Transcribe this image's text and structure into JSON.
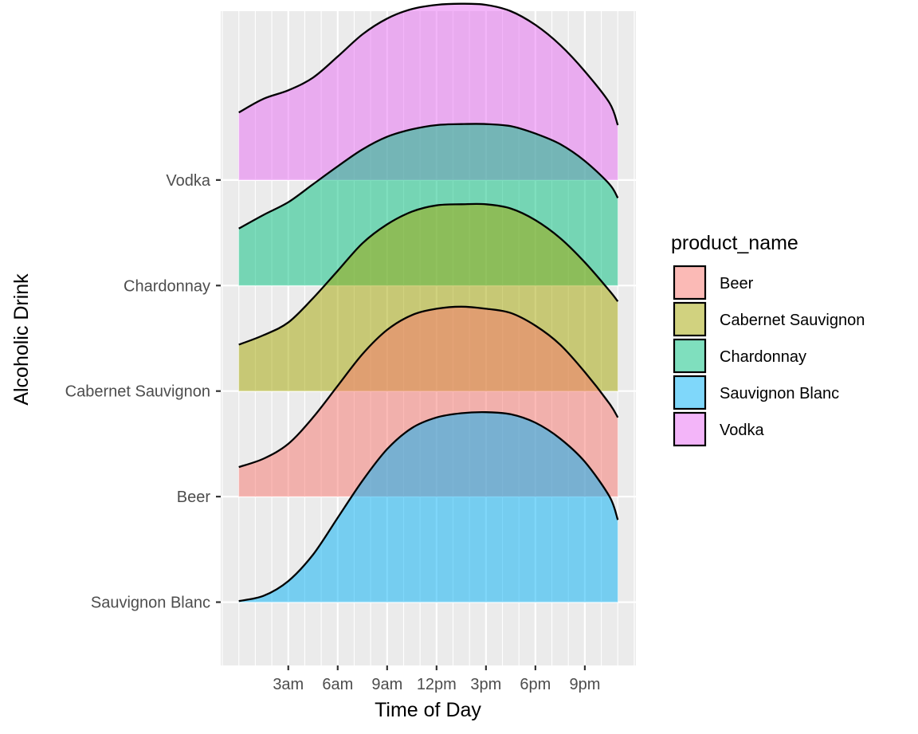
{
  "chart_data": {
    "type": "area",
    "subtype": "ridgeline-density",
    "title": "",
    "xlabel": "Time of Day",
    "ylabel": "Alcoholic Drink",
    "x_ticks": [
      {
        "value": 3,
        "label": "3am"
      },
      {
        "value": 6,
        "label": "6am"
      },
      {
        "value": 9,
        "label": "9am"
      },
      {
        "value": 12,
        "label": "12pm"
      },
      {
        "value": 15,
        "label": "3pm"
      },
      {
        "value": 18,
        "label": "6pm"
      },
      {
        "value": 21,
        "label": "9pm"
      }
    ],
    "xlim": [
      -1.1,
      24.1
    ],
    "y_categories": [
      "Sauvignon Blanc",
      "Beer",
      "Cabernet Sauvignon",
      "Chardonnay",
      "Vodka"
    ],
    "ylim": [
      0.4,
      6.6
    ],
    "grid": true,
    "legend": {
      "title": "product_name",
      "position": "right",
      "entries": [
        "Beer",
        "Cabernet Sauvignon",
        "Chardonnay",
        "Sauvignon Blanc",
        "Vodka"
      ]
    },
    "colors": {
      "Beer": "#F8766D",
      "Cabernet Sauvignon": "#A3A500",
      "Chardonnay": "#00BF7D",
      "Sauvignon Blanc": "#00B0F6",
      "Vodka": "#E76BF3"
    },
    "panel_background": "#EBEBEB",
    "fill_alpha": 0.5,
    "series": [
      {
        "name": "Sauvignon Blanc",
        "baseline": 1,
        "x": [
          0,
          1.5,
          3,
          4.5,
          6,
          7.5,
          9,
          10.5,
          12,
          13.5,
          15,
          16.5,
          18,
          19.5,
          21,
          22.5,
          23
        ],
        "y": [
          1.01,
          1.06,
          1.2,
          1.45,
          1.8,
          2.15,
          2.45,
          2.65,
          2.75,
          2.79,
          2.8,
          2.78,
          2.7,
          2.55,
          2.33,
          2.0,
          1.78
        ]
      },
      {
        "name": "Beer",
        "baseline": 2,
        "x": [
          0,
          1.5,
          3,
          4.5,
          6,
          7.5,
          9,
          10.5,
          12,
          13.5,
          15,
          16.5,
          18,
          19.5,
          21,
          22.5,
          23
        ],
        "y": [
          2.28,
          2.36,
          2.5,
          2.75,
          3.05,
          3.35,
          3.58,
          3.72,
          3.78,
          3.8,
          3.78,
          3.74,
          3.62,
          3.44,
          3.18,
          2.88,
          2.75
        ]
      },
      {
        "name": "Cabernet Sauvignon",
        "baseline": 3,
        "x": [
          0,
          1.5,
          3,
          4.5,
          6,
          7.5,
          9,
          10.5,
          12,
          13.5,
          15,
          16.5,
          18,
          19.5,
          21,
          22.5,
          23
        ],
        "y": [
          3.44,
          3.53,
          3.65,
          3.88,
          4.14,
          4.4,
          4.58,
          4.7,
          4.76,
          4.77,
          4.77,
          4.73,
          4.62,
          4.45,
          4.22,
          3.95,
          3.85
        ]
      },
      {
        "name": "Chardonnay",
        "baseline": 4,
        "x": [
          0,
          1.5,
          3,
          4.5,
          6,
          7.5,
          9,
          10.5,
          12,
          13.5,
          15,
          16.5,
          18,
          19.5,
          21,
          22.5,
          23
        ],
        "y": [
          4.54,
          4.67,
          4.79,
          4.96,
          5.13,
          5.29,
          5.41,
          5.48,
          5.52,
          5.53,
          5.53,
          5.51,
          5.44,
          5.34,
          5.18,
          4.96,
          4.83
        ]
      },
      {
        "name": "Vodka",
        "baseline": 5,
        "x": [
          0,
          1.5,
          3,
          4.5,
          6,
          7.5,
          9,
          10.5,
          12,
          13.5,
          15,
          16.5,
          18,
          19.5,
          21,
          22.5,
          23
        ],
        "y": [
          5.64,
          5.77,
          5.85,
          5.97,
          6.17,
          6.38,
          6.53,
          6.62,
          6.66,
          6.67,
          6.66,
          6.6,
          6.47,
          6.28,
          6.03,
          5.73,
          5.52
        ]
      }
    ]
  }
}
